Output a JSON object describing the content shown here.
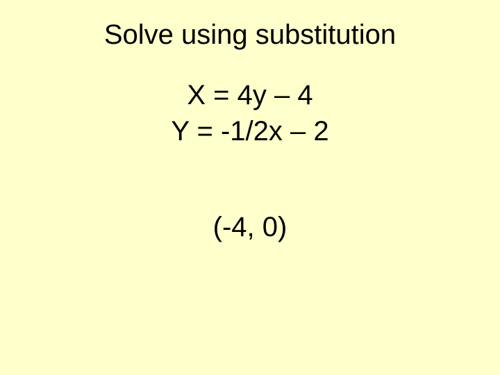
{
  "slide": {
    "background_color": "#ffffcc",
    "text_color": "#000000",
    "font_family": "Arial",
    "title": {
      "text": "Solve using substitution",
      "fontsize": 40,
      "fontweight": "normal"
    },
    "equations": {
      "line1": "X = 4y – 4",
      "line2": "Y = -1/2x – 2",
      "fontsize": 40
    },
    "answer": {
      "text": "(-4, 0)",
      "fontsize": 40
    }
  }
}
